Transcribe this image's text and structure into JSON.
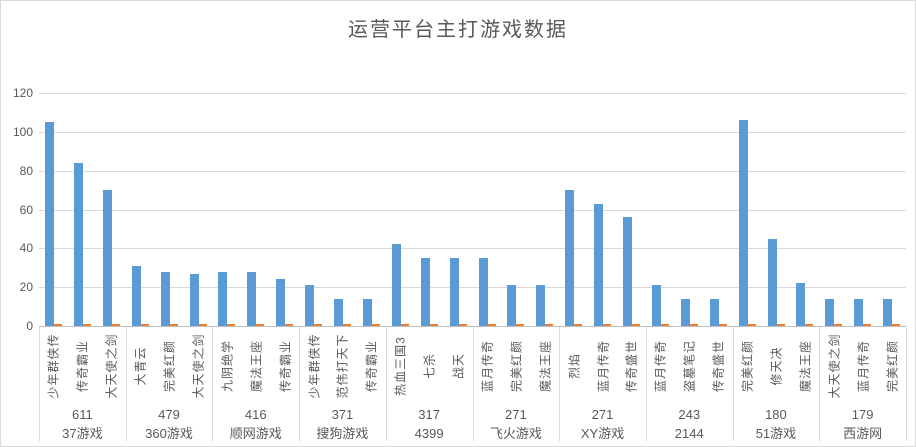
{
  "chart": {
    "colors": {
      "primary": "#5b9bd5",
      "secondary": "#ed7d31",
      "grid": "#d9d9d9",
      "axis": "#bfbfbf",
      "text": "#595959",
      "border": "#d9d9d9"
    }
  },
  "chart_data": {
    "type": "bar",
    "title": "运营平台主打游戏数据",
    "xlabel": "",
    "ylabel": "",
    "ylim": [
      0,
      120
    ],
    "yticks": [
      0,
      20,
      40,
      60,
      80,
      100,
      120
    ],
    "grid": true,
    "legend": "none",
    "axis_structure": "three-level category axis: game name (rotated), total number, platform name",
    "groups": [
      {
        "platform": "37游戏",
        "total": "611",
        "games": [
          "少年群侠传",
          "传奇霸业",
          "大天使之剑"
        ],
        "values": [
          105,
          84,
          70
        ],
        "secondary_values": [
          1,
          1,
          1
        ]
      },
      {
        "platform": "360游戏",
        "total": "479",
        "games": [
          "大青云",
          "完美红颜",
          "大天使之剑"
        ],
        "values": [
          31,
          28,
          27
        ],
        "secondary_values": [
          1,
          1,
          1
        ]
      },
      {
        "platform": "顺网游戏",
        "total": "416",
        "games": [
          "九阴绝学",
          "魔法王座",
          "传奇霸业"
        ],
        "values": [
          28,
          28,
          24
        ],
        "secondary_values": [
          1,
          1,
          1
        ]
      },
      {
        "platform": "搜狗游戏",
        "total": "371",
        "games": [
          "少年群侠传",
          "范伟打天下",
          "传奇霸业"
        ],
        "values": [
          21,
          14,
          14
        ],
        "secondary_values": [
          1,
          1,
          1
        ]
      },
      {
        "platform": "4399",
        "total": "317",
        "games": [
          "热血三国3",
          "七杀",
          "战天"
        ],
        "values": [
          42,
          35,
          35
        ],
        "secondary_values": [
          1,
          1,
          1
        ]
      },
      {
        "platform": "飞火游戏",
        "total": "271",
        "games": [
          "蓝月传奇",
          "完美红颜",
          "魔法王座"
        ],
        "values": [
          35,
          21,
          21
        ],
        "secondary_values": [
          1,
          1,
          1
        ]
      },
      {
        "platform": "XY游戏",
        "total": "271",
        "games": [
          "烈焰",
          "蓝月传奇",
          "传奇盛世"
        ],
        "values": [
          70,
          63,
          56
        ],
        "secondary_values": [
          1,
          1,
          1
        ]
      },
      {
        "platform": "2144",
        "total": "243",
        "games": [
          "蓝月传奇",
          "盗墓笔记",
          "传奇盛世"
        ],
        "values": [
          21,
          14,
          14
        ],
        "secondary_values": [
          1,
          1,
          1
        ]
      },
      {
        "platform": "51游戏",
        "total": "180",
        "games": [
          "完美红颜",
          "修天决",
          "魔法王座"
        ],
        "values": [
          106,
          45,
          22
        ],
        "secondary_values": [
          1,
          1,
          1
        ]
      },
      {
        "platform": "西游网",
        "total": "179",
        "games": [
          "大天使之剑",
          "蓝月传奇",
          "完美红颜"
        ],
        "values": [
          14,
          14,
          14
        ],
        "secondary_values": [
          1,
          1,
          1
        ]
      }
    ]
  }
}
